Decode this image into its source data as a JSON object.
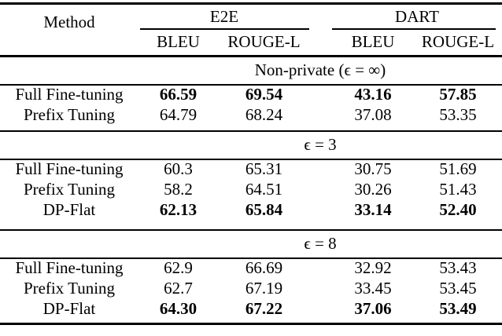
{
  "colors": {
    "background": "#ffffff",
    "text": "#000000",
    "rule": "#000000"
  },
  "table": {
    "method_header": "Method",
    "groups": [
      {
        "label": "E2E"
      },
      {
        "label": "DART"
      }
    ],
    "sub_headers": [
      "BLEU",
      "ROUGE-L",
      "BLEU",
      "ROUGE-L"
    ],
    "sections": [
      {
        "label": "Non-private (ϵ = ∞)",
        "rows": [
          {
            "method": "Full Fine-tuning",
            "values": [
              "66.59",
              "69.54",
              "43.16",
              "57.85"
            ],
            "bold": [
              true,
              true,
              true,
              true
            ]
          },
          {
            "method": "Prefix Tuning",
            "values": [
              "64.79",
              "68.24",
              "37.08",
              "53.35"
            ],
            "bold": [
              false,
              false,
              false,
              false
            ]
          }
        ]
      },
      {
        "label": "ϵ = 3",
        "rows": [
          {
            "method": "Full Fine-tuning",
            "values": [
              "60.3",
              "65.31",
              "30.75",
              "51.69"
            ],
            "bold": [
              false,
              false,
              false,
              false
            ]
          },
          {
            "method": "Prefix Tuning",
            "values": [
              "58.2",
              "64.51",
              "30.26",
              "51.43"
            ],
            "bold": [
              false,
              false,
              false,
              false
            ]
          },
          {
            "method": "DP-Flat",
            "values": [
              "62.13",
              "65.84",
              "33.14",
              "52.40"
            ],
            "bold": [
              true,
              true,
              true,
              true
            ]
          }
        ]
      },
      {
        "label": "ϵ = 8",
        "rows": [
          {
            "method": "Full Fine-tuning",
            "values": [
              "62.9",
              "66.69",
              "32.92",
              "53.43"
            ],
            "bold": [
              false,
              false,
              false,
              false
            ]
          },
          {
            "method": "Prefix Tuning",
            "values": [
              "62.7",
              "67.19",
              "33.45",
              "53.45"
            ],
            "bold": [
              false,
              false,
              false,
              false
            ]
          },
          {
            "method": "DP-Flat",
            "values": [
              "64.30",
              "67.22",
              "37.06",
              "53.49"
            ],
            "bold": [
              true,
              true,
              true,
              true
            ]
          }
        ]
      }
    ]
  }
}
